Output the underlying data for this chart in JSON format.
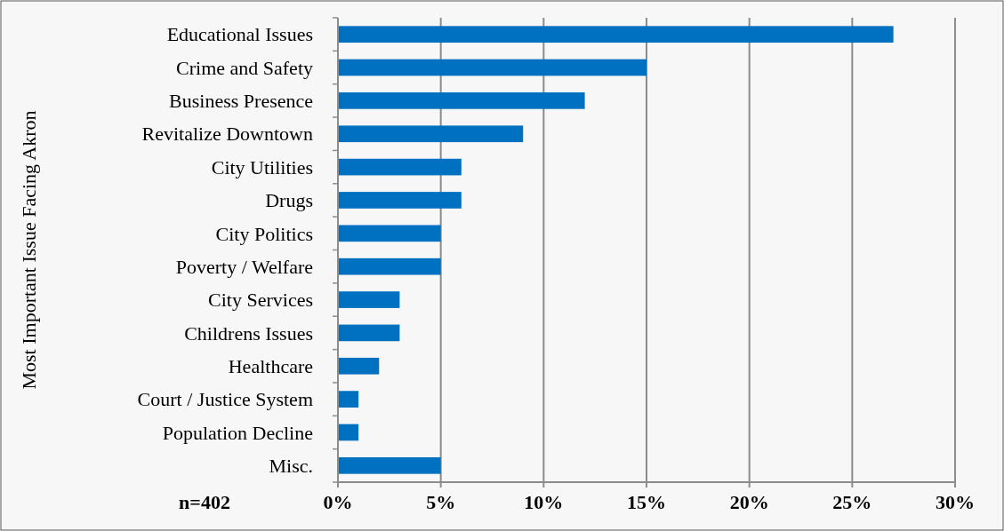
{
  "chart_data": {
    "type": "bar",
    "orientation": "horizontal",
    "ylabel": "Most Important Issue Facing Akron",
    "categories": [
      "Educational Issues",
      "Crime and Safety",
      "Business Presence",
      "Revitalize Downtown",
      "City Utilities",
      "Drugs",
      "City Politics",
      "Poverty / Welfare",
      "City Services",
      "Childrens Issues",
      "Healthcare",
      "Court / Justice System",
      "Population Decline",
      "Misc."
    ],
    "values": [
      27,
      15,
      12,
      9,
      6,
      6,
      5,
      5,
      3,
      3,
      2,
      1,
      1,
      5
    ],
    "color": "#0070c0",
    "xlim": [
      0,
      30
    ],
    "xticks": [
      {
        "value": 0,
        "label": "0%"
      },
      {
        "value": 5,
        "label": "5%"
      },
      {
        "value": 10,
        "label": "10%"
      },
      {
        "value": 15,
        "label": "15%"
      },
      {
        "value": 20,
        "label": "20%"
      },
      {
        "value": 25,
        "label": "25%"
      },
      {
        "value": 30,
        "label": "30%"
      }
    ],
    "grid": "x",
    "annotations": [
      "n=402"
    ]
  }
}
